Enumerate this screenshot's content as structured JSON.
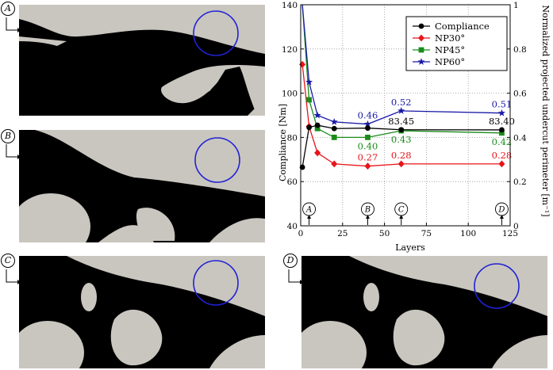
{
  "panels": [
    {
      "label": "A"
    },
    {
      "label": "B"
    },
    {
      "label": "C"
    },
    {
      "label": "D"
    }
  ],
  "chart_data": {
    "type": "line",
    "xlabel": "Layers",
    "ylabel": "Compliance [Nm]",
    "y2label": "Normalized projected undercut perimeter [m⁻¹]",
    "xlim": [
      0,
      125
    ],
    "ylim": [
      40,
      140
    ],
    "y2lim": [
      0,
      1
    ],
    "xticks": [
      "0",
      "25",
      "50",
      "75",
      "100",
      "125"
    ],
    "yticks": [
      "40",
      "60",
      "80",
      "100",
      "120",
      "140"
    ],
    "y2ticks": [
      "0",
      "0.2",
      "0.4",
      "0.6",
      "0.8",
      "1"
    ],
    "grid": true,
    "legend_position": "top-right",
    "series": [
      {
        "name": "Compliance",
        "axis": "left",
        "color": "#000000",
        "marker": "circle",
        "x": [
          1,
          5,
          10,
          20,
          40,
          60,
          120
        ],
        "y": [
          66.5,
          84.5,
          85.5,
          84.0,
          84.2,
          83.45,
          83.4
        ]
      },
      {
        "name": "NP30°",
        "axis": "right",
        "color": "#e8141a",
        "marker": "diamond",
        "x": [
          1,
          5,
          10,
          20,
          40,
          60,
          120
        ],
        "y": [
          0.73,
          0.45,
          0.33,
          0.28,
          0.27,
          0.28,
          0.28
        ]
      },
      {
        "name": "NP45°",
        "axis": "right",
        "color": "#1a8c1a",
        "marker": "square",
        "x": [
          1,
          5,
          10,
          20,
          40,
          60,
          120
        ],
        "y": [
          1.0,
          0.57,
          0.44,
          0.4,
          0.4,
          0.43,
          0.42
        ]
      },
      {
        "name": "NP60°",
        "axis": "right",
        "color": "#1a1aa8",
        "marker": "star",
        "x": [
          1,
          5,
          10,
          20,
          40,
          60,
          120
        ],
        "y": [
          1.0,
          0.65,
          0.5,
          0.47,
          0.46,
          0.52,
          0.51
        ]
      }
    ],
    "annotations": [
      {
        "text": "0.46",
        "x": 40,
        "y": 0.46,
        "axis": "right",
        "color": "#1a1aa8",
        "placement": "above"
      },
      {
        "text": "0.52",
        "x": 60,
        "y": 0.52,
        "axis": "right",
        "color": "#1a1aa8",
        "placement": "above"
      },
      {
        "text": "0.51",
        "x": 120,
        "y": 0.51,
        "axis": "right",
        "color": "#1a1aa8",
        "placement": "above"
      },
      {
        "text": "83.45",
        "x": 60,
        "y": 83.45,
        "axis": "left",
        "color": "#000000",
        "placement": "above"
      },
      {
        "text": "83.40",
        "x": 120,
        "y": 83.4,
        "axis": "left",
        "color": "#000000",
        "placement": "above"
      },
      {
        "text": "0.40",
        "x": 40,
        "y": 0.4,
        "axis": "right",
        "color": "#1a8c1a",
        "placement": "below"
      },
      {
        "text": "0.43",
        "x": 60,
        "y": 0.43,
        "axis": "right",
        "color": "#1a8c1a",
        "placement": "below"
      },
      {
        "text": "0.42",
        "x": 120,
        "y": 0.42,
        "axis": "right",
        "color": "#1a8c1a",
        "placement": "below"
      },
      {
        "text": "0.27",
        "x": 40,
        "y": 0.27,
        "axis": "right",
        "color": "#e8141a",
        "placement": "above"
      },
      {
        "text": "0.28",
        "x": 60,
        "y": 0.28,
        "axis": "right",
        "color": "#e8141a",
        "placement": "above"
      },
      {
        "text": "0.28",
        "x": 120,
        "y": 0.28,
        "axis": "right",
        "color": "#e8141a",
        "placement": "above"
      }
    ],
    "markers": [
      {
        "label": "A",
        "x": 5
      },
      {
        "label": "B",
        "x": 40
      },
      {
        "label": "C",
        "x": 60
      },
      {
        "label": "D",
        "x": 120
      }
    ]
  }
}
